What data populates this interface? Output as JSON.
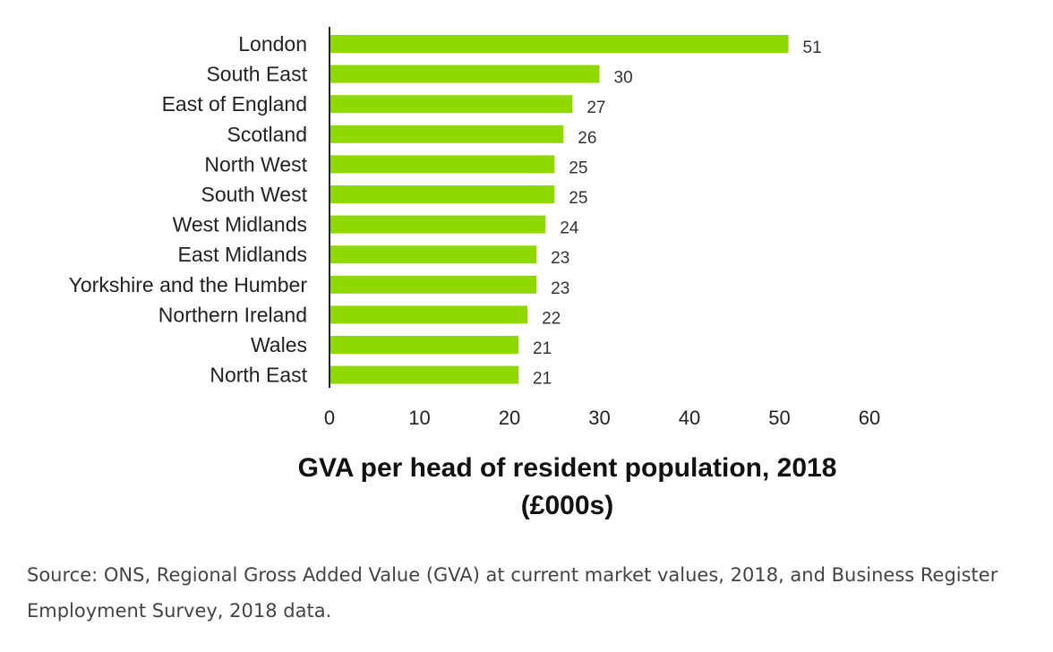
{
  "chart_data": {
    "type": "bar",
    "orientation": "horizontal",
    "categories": [
      "London",
      "South East",
      "East of England",
      "Scotland",
      "North West",
      "South West",
      "West Midlands",
      "East Midlands",
      "Yorkshire and the Humber",
      "Northern Ireland",
      "Wales",
      "North East"
    ],
    "values": [
      51,
      30,
      27,
      26,
      25,
      25,
      24,
      23,
      23,
      22,
      21,
      21
    ],
    "data_labels": [
      "51",
      "30",
      "27",
      "26",
      "25",
      "25",
      "24",
      "23",
      "23",
      "22",
      "21",
      "21"
    ],
    "xlabel_line1": "GVA per head of resident population, 2018",
    "xlabel_line2": "(£000s)",
    "ylabel": "",
    "xlim": [
      0,
      60
    ],
    "xticks": [
      0,
      10,
      20,
      30,
      40,
      50,
      60
    ],
    "xtick_labels": [
      "0",
      "10",
      "20",
      "30",
      "40",
      "50",
      "60"
    ],
    "grid": false,
    "legend": "none",
    "bar_color": "#8fd900"
  },
  "source_note": "Source: ONS, Regional Gross Added Value (GVA) at current market values, 2018, and Business Register Employment Survey, 2018 data."
}
